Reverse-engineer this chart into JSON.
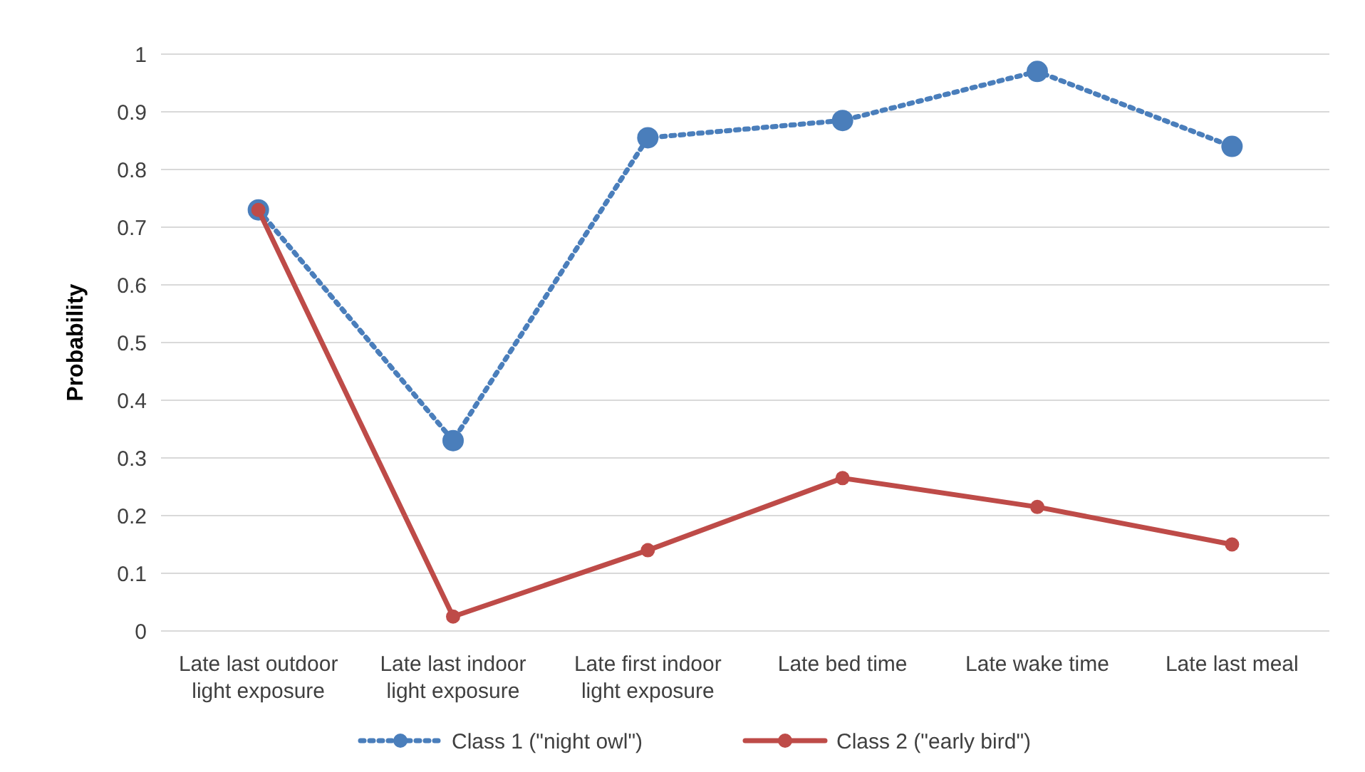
{
  "chart_data": {
    "type": "line",
    "ylabel": "Probability",
    "categories": [
      "Late last outdoor light exposure",
      "Late last indoor light exposure",
      "Late first indoor light exposure",
      "Late bed time",
      "Late wake time",
      "Late last meal"
    ],
    "series": [
      {
        "name": "Class 1 (\"night owl\")",
        "color": "#4a7ebb",
        "line_style": "dotted",
        "values": [
          0.73,
          0.33,
          0.855,
          0.885,
          0.97,
          0.84
        ]
      },
      {
        "name": "Class 2 (\"early bird\")",
        "color": "#be4b48",
        "line_style": "solid",
        "values": [
          0.73,
          0.025,
          0.14,
          0.265,
          0.215,
          0.15
        ]
      }
    ],
    "ylim": [
      0,
      1
    ],
    "yticks": [
      0,
      0.1,
      0.2,
      0.3,
      0.4,
      0.5,
      0.6,
      0.7,
      0.8,
      0.9,
      1
    ],
    "grid": "y",
    "legend": "bottom",
    "marker": "circle"
  }
}
